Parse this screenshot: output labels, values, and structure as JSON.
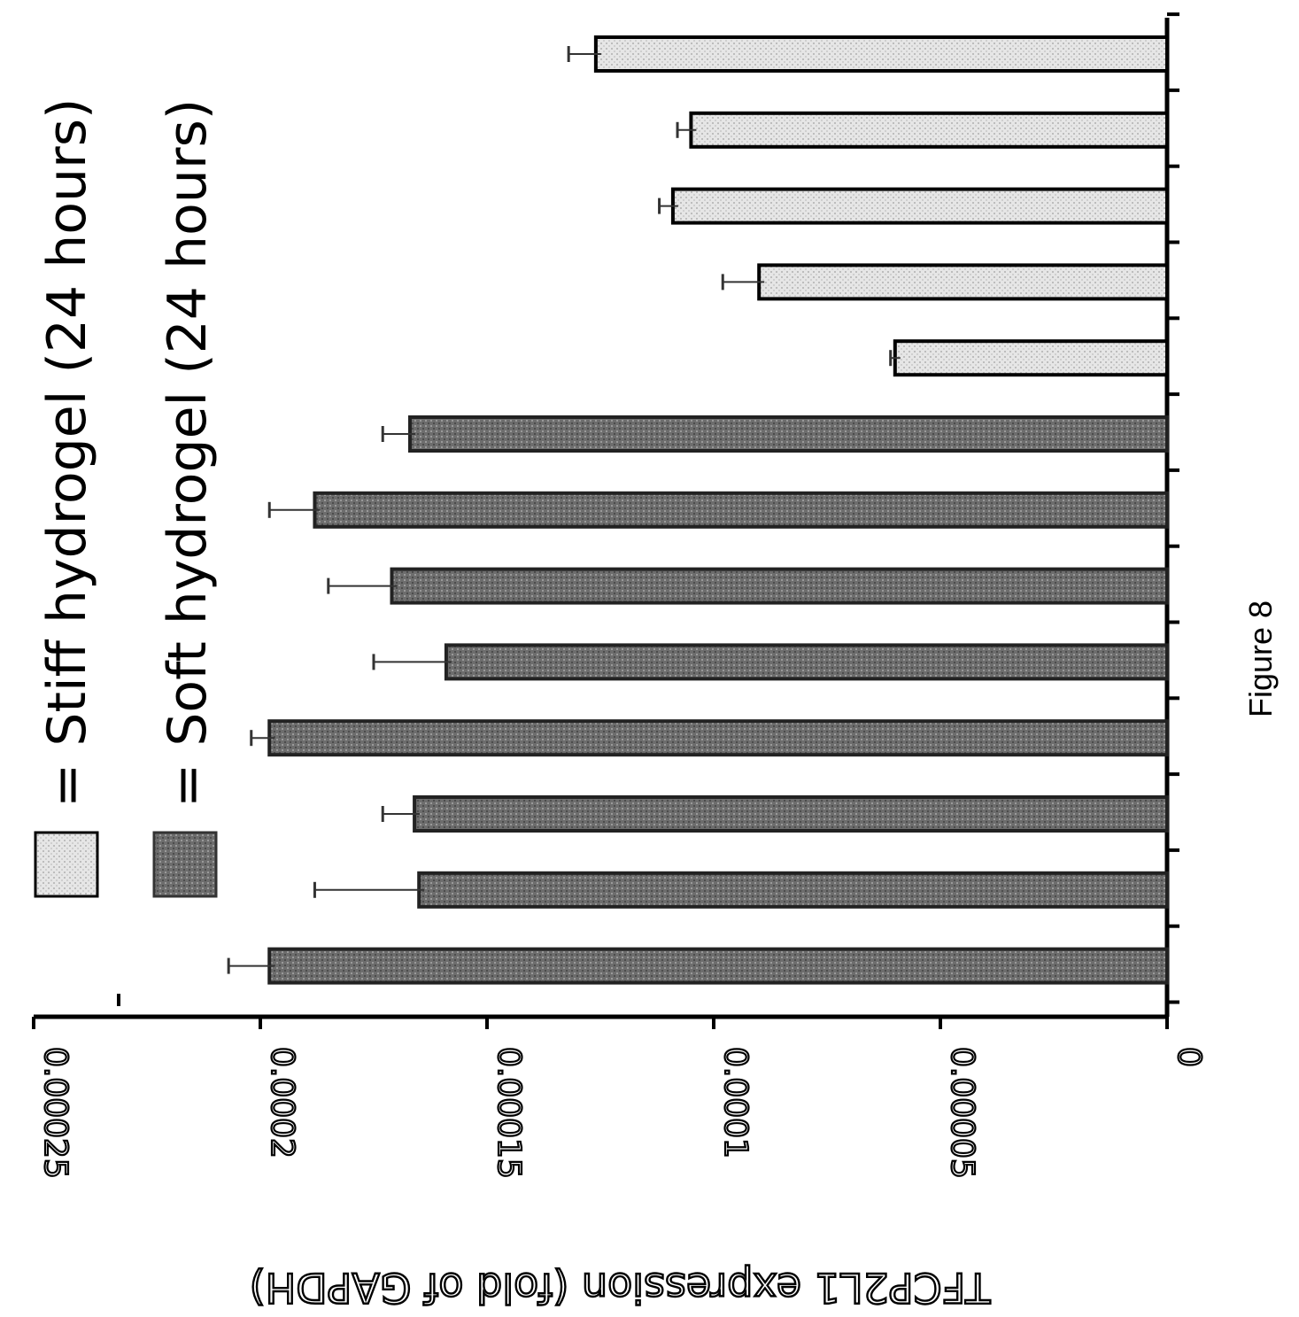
{
  "chart_data": {
    "type": "bar",
    "orientation": "horizontal",
    "ylabel": "TFCP2L1 expression (fold of GAPDH)",
    "caption": "Figure 8",
    "ylim": [
      0,
      0.00025
    ],
    "yticks": [
      "0",
      "0.00005",
      "0.0001",
      "0.00015",
      "0.0002",
      "0.00025"
    ],
    "ytick_values": [
      0,
      5e-05,
      0.0001,
      0.00015,
      0.0002,
      0.00025
    ],
    "legend": [
      {
        "label": "= Stiff hydrogel (24 hours)",
        "color": "#e4e4e4"
      },
      {
        "label": "= Soft hydrogel (24 hours)",
        "color": "#6a6a6a"
      }
    ],
    "bars": [
      {
        "group": "Stiff hydrogel (24 hours)",
        "value": 0.000126,
        "error": 6e-06
      },
      {
        "group": "Stiff hydrogel (24 hours)",
        "value": 0.000105,
        "error": 3e-06
      },
      {
        "group": "Stiff hydrogel (24 hours)",
        "value": 0.000109,
        "error": 3e-06
      },
      {
        "group": "Stiff hydrogel (24 hours)",
        "value": 9e-05,
        "error": 8e-06
      },
      {
        "group": "Stiff hydrogel (24 hours)",
        "value": 6e-05,
        "error": 1e-06
      },
      {
        "group": "Soft hydrogel (24 hours)",
        "value": 0.000167,
        "error": 6e-06
      },
      {
        "group": "Soft hydrogel (24 hours)",
        "value": 0.000188,
        "error": 1e-05
      },
      {
        "group": "Soft hydrogel (24 hours)",
        "value": 0.000171,
        "error": 1.4e-05
      },
      {
        "group": "Soft hydrogel (24 hours)",
        "value": 0.000159,
        "error": 1.6e-05
      },
      {
        "group": "Soft hydrogel (24 hours)",
        "value": 0.000198,
        "error": 4e-06
      },
      {
        "group": "Soft hydrogel (24 hours)",
        "value": 0.000166,
        "error": 7e-06
      },
      {
        "group": "Soft hydrogel (24 hours)",
        "value": 0.000165,
        "error": 2.3e-05
      },
      {
        "group": "Soft hydrogel (24 hours)",
        "value": 0.000198,
        "error": 9e-06
      }
    ],
    "colors": {
      "stiff": "#e4e4e4",
      "soft": "#6a6a6a",
      "outline": "#000000"
    }
  }
}
